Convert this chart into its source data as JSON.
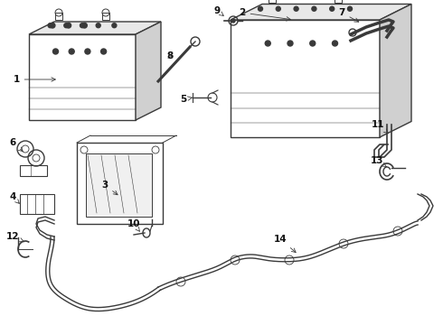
{
  "bg_color": "#ffffff",
  "line_color": "#3a3a3a",
  "label_color": "#111111",
  "fig_w": 4.9,
  "fig_h": 3.6,
  "dpi": 100,
  "lw": 1.0
}
